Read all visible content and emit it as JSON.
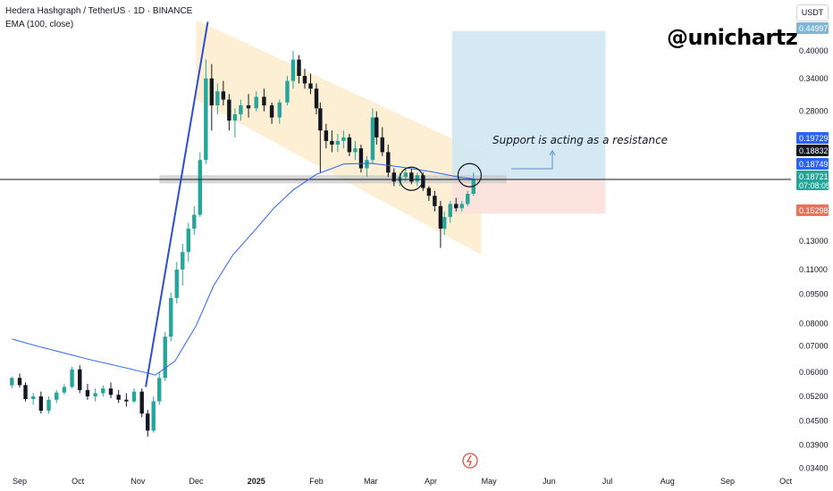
{
  "header": {
    "title": "Hedera Hashgraph / TetherUS · 1D · BINANCE",
    "indicator": "EMA (100, close)"
  },
  "watermark": "@unichartz",
  "annotation": "Support is acting as a resistance",
  "currency_button": "USDT",
  "colors": {
    "up": "#26a69a",
    "down": "#131722",
    "ema": "#2962ff",
    "channel": "#fbe9c4",
    "profit_zone": "#cfe7f3",
    "loss_zone": "#fbe0da",
    "support_band": "#c8c8c8",
    "trendline": "#2a4fd6"
  },
  "price_badges": [
    {
      "label": "0.44997",
      "bg": "#7fb8d6"
    },
    {
      "label": "0.19729",
      "bg": "#2962ff"
    },
    {
      "label": "0.18832",
      "bg": "#131722"
    },
    {
      "label": "0.18749",
      "bg": "#2962ff"
    },
    {
      "label": "0.18721",
      "sub": "07:08:05",
      "bg": "#26a69a"
    },
    {
      "label": "0.15298",
      "bg": "#e8735a"
    }
  ],
  "chart_data": {
    "type": "candlestick",
    "log_scale": true,
    "y_ticks": [
      "0.40000",
      "0.34000",
      "0.28000",
      "0.13000",
      "0.11000",
      "0.09500",
      "0.08000",
      "0.07000",
      "0.06000",
      "0.05200",
      "0.04500",
      "0.03900",
      "0.03400"
    ],
    "y_tick_values": [
      0.4,
      0.34,
      0.28,
      0.13,
      0.11,
      0.095,
      0.08,
      0.07,
      0.06,
      0.052,
      0.045,
      0.039,
      0.034
    ],
    "x_ticks": [
      "Sep",
      "Oct",
      "Nov",
      "Dec",
      "2025",
      "Feb",
      "Mar",
      "Apr",
      "May",
      "Jun",
      "Jul",
      "Aug",
      "Sep",
      "Oct"
    ],
    "x_tick_dates": [
      "2024-09-01",
      "2024-10-01",
      "2024-11-01",
      "2024-12-01",
      "2025-01-01",
      "2025-02-01",
      "2025-03-01",
      "2025-04-01",
      "2025-05-01",
      "2025-06-01",
      "2025-07-01",
      "2025-08-01",
      "2025-09-01",
      "2025-10-01"
    ],
    "ylim": [
      0.033,
      0.48
    ],
    "current_price": 0.18721,
    "ema_value": 0.18749,
    "position": {
      "entry": 0.18721,
      "target": 0.44997,
      "stop": 0.15298,
      "start": "2025-04-12",
      "end": "2025-06-30"
    },
    "support_zone": {
      "low": 0.183,
      "high": 0.192,
      "start": "2024-11-12",
      "end": "2025-05-10"
    },
    "channel": {
      "start": "2024-12-01",
      "end": "2025-04-27",
      "upper": [
        0.48,
        0.22
      ],
      "lower": [
        0.3,
        0.12
      ]
    },
    "trendline": {
      "start": [
        "2024-11-05",
        0.055
      ],
      "end": [
        "2024-12-07",
        0.475
      ]
    },
    "circles": [
      {
        "date": "2025-03-22",
        "price": 0.188
      },
      {
        "date": "2025-04-21",
        "price": 0.192
      }
    ],
    "ema": [
      [
        "2024-08-28",
        0.073
      ],
      [
        "2024-09-10",
        0.07
      ],
      [
        "2024-09-25",
        0.067
      ],
      [
        "2024-10-05",
        0.065
      ],
      [
        "2024-10-20",
        0.0625
      ],
      [
        "2024-11-01",
        0.0605
      ],
      [
        "2024-11-10",
        0.059
      ],
      [
        "2024-11-20",
        0.064
      ],
      [
        "2024-12-01",
        0.079
      ],
      [
        "2024-12-10",
        0.1
      ],
      [
        "2024-12-20",
        0.12
      ],
      [
        "2025-01-01",
        0.14
      ],
      [
        "2025-01-10",
        0.158
      ],
      [
        "2025-01-20",
        0.176
      ],
      [
        "2025-02-01",
        0.193
      ],
      [
        "2025-02-15",
        0.205
      ],
      [
        "2025-03-01",
        0.206
      ],
      [
        "2025-03-15",
        0.202
      ],
      [
        "2025-04-01",
        0.196
      ],
      [
        "2025-04-15",
        0.19
      ],
      [
        "2025-04-24",
        0.1875
      ]
    ],
    "candles": [
      [
        "2024-08-28",
        0.0555,
        0.0585,
        0.0545,
        0.058
      ],
      [
        "2024-09-01",
        0.058,
        0.0595,
        0.0548,
        0.0556
      ],
      [
        "2024-09-04",
        0.0556,
        0.0565,
        0.0505,
        0.0512
      ],
      [
        "2024-09-08",
        0.0512,
        0.053,
        0.0495,
        0.052
      ],
      [
        "2024-09-12",
        0.052,
        0.0535,
        0.047,
        0.0478
      ],
      [
        "2024-09-16",
        0.0478,
        0.052,
        0.047,
        0.051
      ],
      [
        "2024-09-20",
        0.051,
        0.054,
        0.05,
        0.0532
      ],
      [
        "2024-09-24",
        0.0532,
        0.056,
        0.0525,
        0.055
      ],
      [
        "2024-09-28",
        0.055,
        0.062,
        0.0545,
        0.061
      ],
      [
        "2024-10-02",
        0.061,
        0.0625,
        0.053,
        0.054
      ],
      [
        "2024-10-06",
        0.054,
        0.056,
        0.051,
        0.052
      ],
      [
        "2024-10-10",
        0.052,
        0.0545,
        0.0505,
        0.053
      ],
      [
        "2024-10-14",
        0.053,
        0.0555,
        0.052,
        0.0545
      ],
      [
        "2024-10-18",
        0.0545,
        0.0565,
        0.0515,
        0.0525
      ],
      [
        "2024-10-22",
        0.0525,
        0.054,
        0.05,
        0.051
      ],
      [
        "2024-10-26",
        0.051,
        0.053,
        0.049,
        0.0505
      ],
      [
        "2024-10-30",
        0.0505,
        0.0545,
        0.05,
        0.0535
      ],
      [
        "2024-11-03",
        0.0535,
        0.0545,
        0.046,
        0.047
      ],
      [
        "2024-11-06",
        0.047,
        0.048,
        0.041,
        0.0425
      ],
      [
        "2024-11-09",
        0.0425,
        0.052,
        0.042,
        0.0505
      ],
      [
        "2024-11-12",
        0.0505,
        0.06,
        0.0495,
        0.058
      ],
      [
        "2024-11-15",
        0.058,
        0.076,
        0.057,
        0.074
      ],
      [
        "2024-11-18",
        0.074,
        0.096,
        0.072,
        0.093
      ],
      [
        "2024-11-21",
        0.093,
        0.115,
        0.09,
        0.11
      ],
      [
        "2024-11-24",
        0.11,
        0.128,
        0.1,
        0.122
      ],
      [
        "2024-11-27",
        0.122,
        0.145,
        0.115,
        0.14
      ],
      [
        "2024-11-30",
        0.14,
        0.16,
        0.135,
        0.152
      ],
      [
        "2024-12-03",
        0.152,
        0.22,
        0.15,
        0.21
      ],
      [
        "2024-12-06",
        0.21,
        0.38,
        0.205,
        0.34
      ],
      [
        "2024-12-09",
        0.34,
        0.37,
        0.25,
        0.29
      ],
      [
        "2024-12-12",
        0.29,
        0.33,
        0.275,
        0.315
      ],
      [
        "2024-12-15",
        0.315,
        0.335,
        0.29,
        0.3
      ],
      [
        "2024-12-18",
        0.3,
        0.31,
        0.25,
        0.265
      ],
      [
        "2024-12-21",
        0.265,
        0.285,
        0.24,
        0.275
      ],
      [
        "2024-12-24",
        0.275,
        0.3,
        0.265,
        0.29
      ],
      [
        "2024-12-28",
        0.29,
        0.31,
        0.27,
        0.285
      ],
      [
        "2025-01-01",
        0.285,
        0.315,
        0.28,
        0.305
      ],
      [
        "2025-01-05",
        0.305,
        0.32,
        0.28,
        0.29
      ],
      [
        "2025-01-09",
        0.29,
        0.295,
        0.26,
        0.27
      ],
      [
        "2025-01-13",
        0.27,
        0.3,
        0.26,
        0.295
      ],
      [
        "2025-01-17",
        0.295,
        0.345,
        0.29,
        0.335
      ],
      [
        "2025-01-20",
        0.335,
        0.4,
        0.32,
        0.38
      ],
      [
        "2025-01-23",
        0.38,
        0.39,
        0.33,
        0.345
      ],
      [
        "2025-01-26",
        0.345,
        0.36,
        0.32,
        0.33
      ],
      [
        "2025-01-29",
        0.33,
        0.35,
        0.31,
        0.32
      ],
      [
        "2025-02-01",
        0.32,
        0.33,
        0.275,
        0.285
      ],
      [
        "2025-02-03",
        0.285,
        0.295,
        0.195,
        0.25
      ],
      [
        "2025-02-06",
        0.25,
        0.26,
        0.225,
        0.235
      ],
      [
        "2025-02-09",
        0.235,
        0.25,
        0.22,
        0.23
      ],
      [
        "2025-02-12",
        0.23,
        0.245,
        0.22,
        0.235
      ],
      [
        "2025-02-15",
        0.235,
        0.25,
        0.225,
        0.24
      ],
      [
        "2025-02-18",
        0.24,
        0.245,
        0.215,
        0.22
      ],
      [
        "2025-02-21",
        0.22,
        0.235,
        0.21,
        0.225
      ],
      [
        "2025-02-24",
        0.225,
        0.23,
        0.195,
        0.2
      ],
      [
        "2025-02-27",
        0.2,
        0.215,
        0.19,
        0.21
      ],
      [
        "2025-03-02",
        0.21,
        0.285,
        0.205,
        0.27
      ],
      [
        "2025-03-04",
        0.27,
        0.28,
        0.23,
        0.24
      ],
      [
        "2025-03-07",
        0.24,
        0.255,
        0.215,
        0.22
      ],
      [
        "2025-03-10",
        0.22,
        0.23,
        0.19,
        0.195
      ],
      [
        "2025-03-13",
        0.195,
        0.2,
        0.18,
        0.185
      ],
      [
        "2025-03-16",
        0.185,
        0.195,
        0.18,
        0.19
      ],
      [
        "2025-03-19",
        0.19,
        0.2,
        0.185,
        0.195
      ],
      [
        "2025-03-22",
        0.195,
        0.2,
        0.182,
        0.185
      ],
      [
        "2025-03-25",
        0.185,
        0.195,
        0.18,
        0.192
      ],
      [
        "2025-03-28",
        0.192,
        0.195,
        0.175,
        0.178
      ],
      [
        "2025-03-31",
        0.178,
        0.18,
        0.165,
        0.17
      ],
      [
        "2025-04-03",
        0.17,
        0.175,
        0.155,
        0.16
      ],
      [
        "2025-04-06",
        0.16,
        0.165,
        0.125,
        0.14
      ],
      [
        "2025-04-08",
        0.14,
        0.155,
        0.135,
        0.15
      ],
      [
        "2025-04-11",
        0.15,
        0.165,
        0.145,
        0.162
      ],
      [
        "2025-04-14",
        0.162,
        0.168,
        0.155,
        0.158
      ],
      [
        "2025-04-17",
        0.158,
        0.165,
        0.155,
        0.162
      ],
      [
        "2025-04-20",
        0.162,
        0.175,
        0.16,
        0.172
      ],
      [
        "2025-04-23",
        0.172,
        0.195,
        0.17,
        0.1872
      ]
    ]
  }
}
